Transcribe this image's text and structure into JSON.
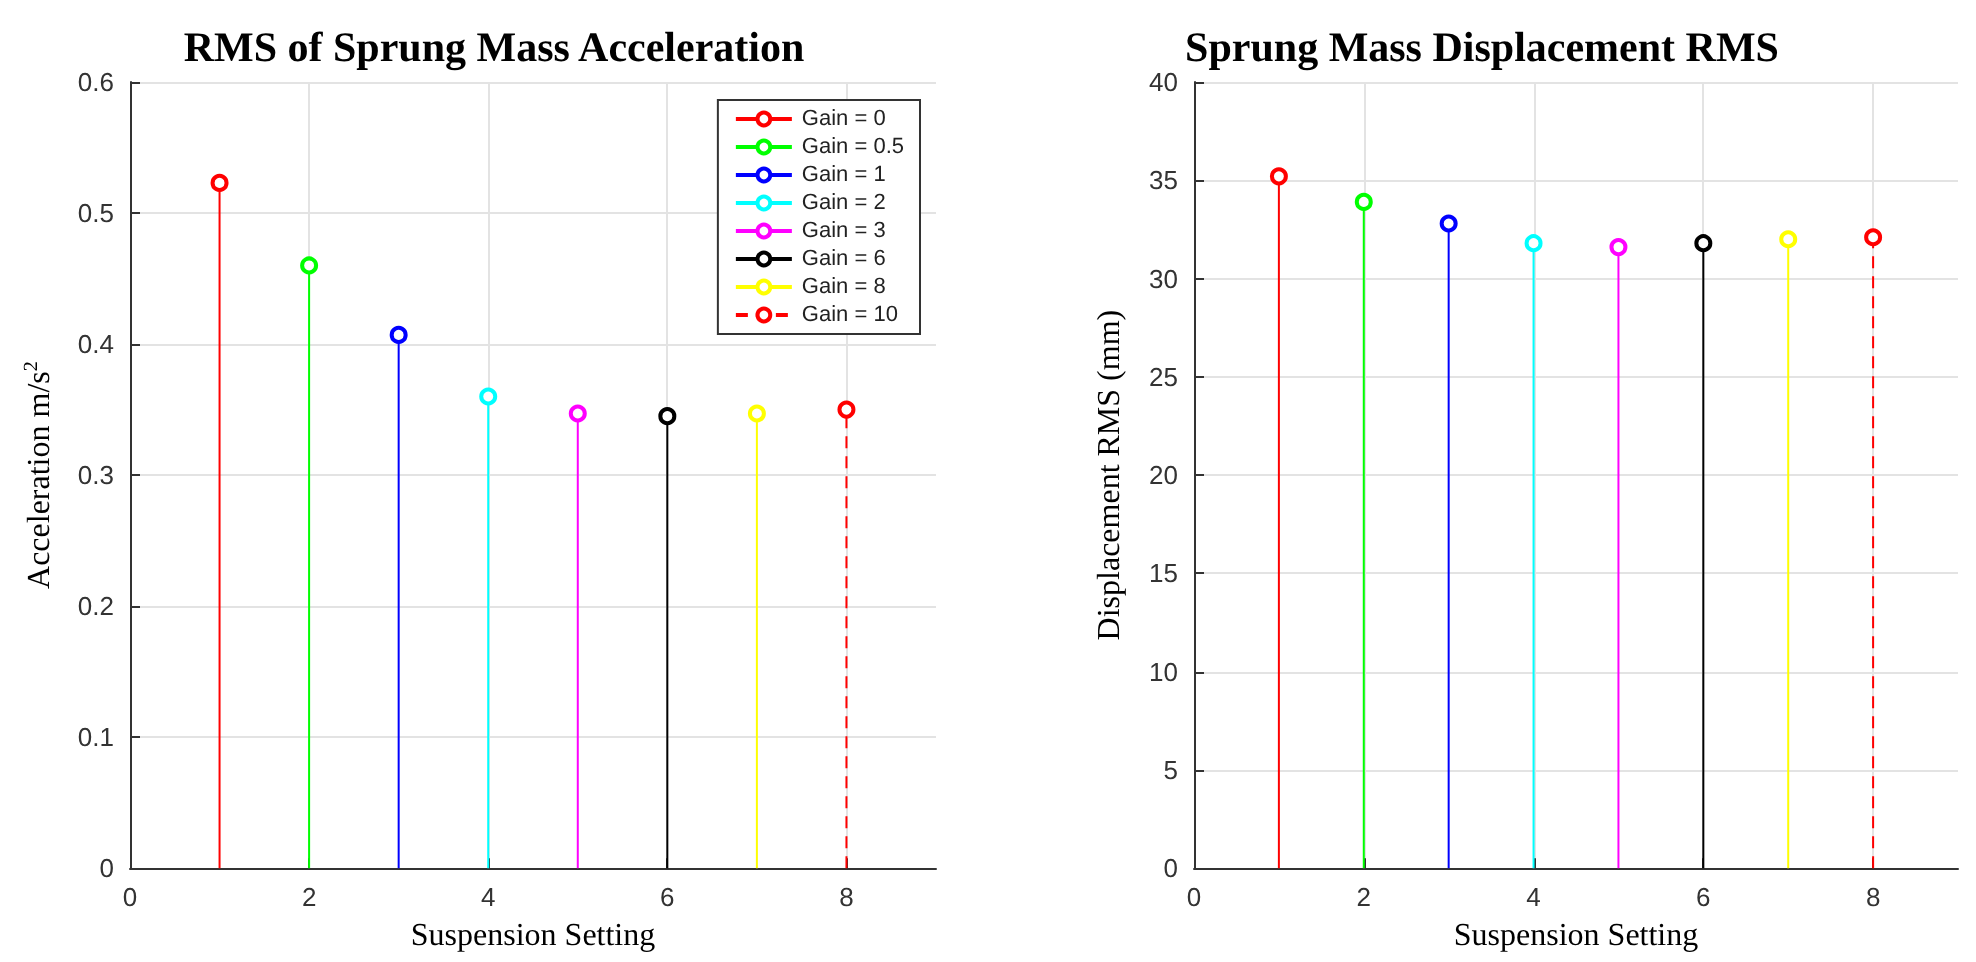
{
  "chart_data": [
    {
      "type": "lollipop",
      "title": "RMS of Sprung Mass Acceleration",
      "xlabel": "Suspension Setting",
      "ylabel": "Acceleration m/s$^{2}$",
      "xlim": [
        0,
        9
      ],
      "xticks": [
        0,
        2,
        4,
        6,
        8
      ],
      "ylim": [
        0,
        0.6
      ],
      "yticks": [
        0,
        0.1,
        0.2,
        0.3,
        0.4,
        0.5,
        0.6
      ],
      "grid": true,
      "legend": "top right",
      "marker": "circle",
      "series": [
        {
          "name": "Gain = 0",
          "color": "#ff0000",
          "x": [
            1
          ],
          "values": [
            0.523
          ]
        },
        {
          "name": "Gain = 0.5",
          "color": "#00ff00",
          "x": [
            2
          ],
          "values": [
            0.46
          ]
        },
        {
          "name": "Gain = 1",
          "color": "#0000ff",
          "x": [
            3
          ],
          "values": [
            0.407
          ]
        },
        {
          "name": "Gain = 2",
          "color": "#00ffff",
          "x": [
            4
          ],
          "values": [
            0.36
          ]
        },
        {
          "name": "Gain = 3",
          "color": "#ff00ff",
          "x": [
            5
          ],
          "values": [
            0.347
          ]
        },
        {
          "name": "Gain = 6",
          "color": "#000000",
          "x": [
            6
          ],
          "values": [
            0.345
          ]
        },
        {
          "name": "Gain = 8",
          "color": "#ffff00",
          "x": [
            7
          ],
          "values": [
            0.347
          ]
        },
        {
          "name": "Gain = 10",
          "color": "#ff0000",
          "x": [
            8
          ],
          "values": [
            0.35
          ],
          "line_style": "dashed"
        }
      ]
    },
    {
      "type": "lollipop",
      "title": "Sprung Mass Displacement RMS",
      "xlabel": "Suspension Setting",
      "ylabel": "Displacement RMS (mm)",
      "xlim": [
        0,
        9
      ],
      "xticks": [
        0,
        2,
        4,
        6,
        8
      ],
      "ylim": [
        0,
        40
      ],
      "yticks": [
        0,
        5,
        10,
        15,
        20,
        25,
        30,
        35,
        40
      ],
      "grid": true,
      "marker": "circle",
      "series": [
        {
          "color": "#ff0000",
          "x": [
            1
          ],
          "values": [
            35.2
          ]
        },
        {
          "color": "#00ff00",
          "x": [
            2
          ],
          "values": [
            33.9
          ]
        },
        {
          "color": "#0000ff",
          "x": [
            3
          ],
          "values": [
            32.8
          ]
        },
        {
          "color": "#00ffff",
          "x": [
            4
          ],
          "values": [
            31.8
          ]
        },
        {
          "color": "#ff00ff",
          "x": [
            5
          ],
          "values": [
            31.6
          ]
        },
        {
          "color": "#000000",
          "x": [
            6
          ],
          "values": [
            31.8
          ]
        },
        {
          "color": "#ffff00",
          "x": [
            7
          ],
          "values": [
            32.0
          ]
        },
        {
          "color": "#ff0000",
          "x": [
            8
          ],
          "values": [
            32.1
          ],
          "line_style": "dashed"
        }
      ]
    }
  ]
}
